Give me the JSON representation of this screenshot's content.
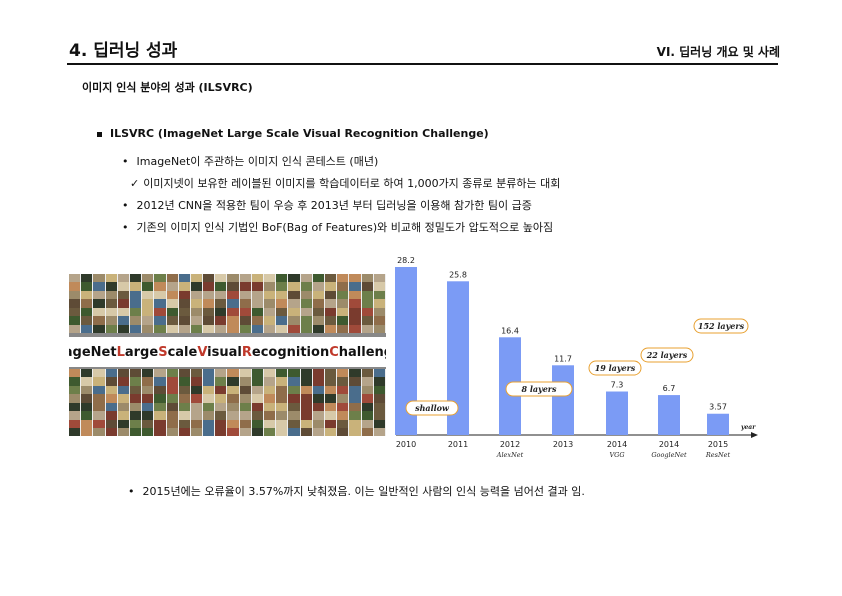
{
  "header": {
    "title": "4. 딥러닝 성과",
    "section": "VI. 딥러닝 개요 및 사례"
  },
  "section_title": "이미지 인식 분야의 성과 (ILSVRC)",
  "main_bullet": "ILSVRC (ImageNet Large Scale Visual Recognition Challenge)",
  "sub_bullets": [
    {
      "marker": "•",
      "text": "ImageNet이 주관하는 이미지 인식 콘테스트 (매년)"
    },
    {
      "marker": "✓",
      "text": "이미지넷이 보유한 레이블된 이미지를 학습데이터로 하여 1,000가지 종류로 분류하는 대회"
    },
    {
      "marker": "•",
      "text": "2012년 CNN을 적용한 팀이 우승 후 2013년 부터 딥러닝을 이용해 참가한 팀이 급증"
    },
    {
      "marker": "•",
      "text": "기존의 이미지 인식 기법인 BoF(Bag of Features)와 비교해 정밀도가 압도적으로 높아짐"
    }
  ],
  "image_banner": {
    "parts": [
      {
        "initial": "I",
        "rest": "mageNet "
      },
      {
        "initial": "L",
        "rest": "arge "
      },
      {
        "initial": "S",
        "rest": "cale "
      },
      {
        "initial": "V",
        "rest": "isual "
      },
      {
        "initial": "R",
        "rest": "ecognition "
      },
      {
        "initial": "C",
        "rest": "hallenges"
      }
    ]
  },
  "chart_data": {
    "type": "bar",
    "categories": [
      "2010",
      "2011",
      "2012",
      "2013",
      "2014",
      "2014",
      "2015"
    ],
    "sublabels": [
      "",
      "",
      "AlexNet",
      "",
      "VGG",
      "GoogleNet",
      "ResNet"
    ],
    "values": [
      28.2,
      25.8,
      16.4,
      11.7,
      7.3,
      6.7,
      3.57
    ],
    "value_labels": [
      "28.2",
      "25.8",
      "16.4",
      "11.7",
      "7.3",
      "6.7",
      "3.57"
    ],
    "xlabel": "year",
    "ylim": [
      0,
      30
    ],
    "bar_color": "#7b9bf5",
    "annotations": [
      "shallow",
      "8 layers",
      "19 layers",
      "22 layers",
      "152 layers"
    ],
    "annotation_color": "#e8a030"
  },
  "last_bullet": {
    "marker": "•",
    "text": "2015년에는 오류율이 3.57%까지 낮춰졌음. 이는 일반적인 사람의 인식 능력을 넘어선 결과 임."
  }
}
